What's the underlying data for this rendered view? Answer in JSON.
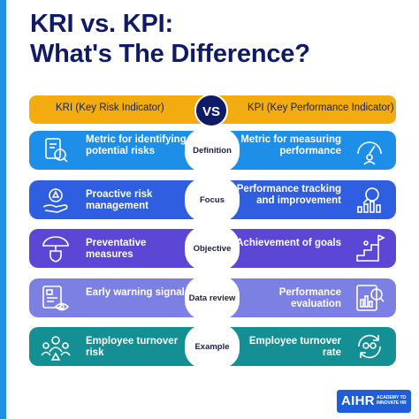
{
  "title": {
    "line1": "KRI vs. KPI:",
    "line2": "What's The Difference?"
  },
  "header": {
    "left": "KRI (Key Risk Indicator)",
    "vs": "VS",
    "right": "KPI (Key Performance Indicator)",
    "color": "#f2ac10"
  },
  "rows": [
    {
      "center": "Definition",
      "left": "Metric for identifying potential risks",
      "right": "Metric for measuring performance",
      "color": "#1e8fe8",
      "left_icon": "checklist-magnifier-icon",
      "right_icon": "gauge-person-icon"
    },
    {
      "center": "Focus",
      "left": "Proactive risk management",
      "right": "Performance tracking and improvement",
      "color": "#2f5fe0",
      "left_icon": "hand-gear-warning-icon",
      "right_icon": "magnifier-chart-icon"
    },
    {
      "center": "Objective",
      "left": "Preventative measures",
      "right": "Achievement of goals",
      "color": "#5b46d6",
      "left_icon": "umbrella-shield-icon",
      "right_icon": "stairs-flag-icon"
    },
    {
      "center": "Data review",
      "left": "Early warning signals",
      "right": "Performance evaluation",
      "color": "#7d80e3",
      "left_icon": "document-eye-icon",
      "right_icon": "chart-magnifier-icon"
    },
    {
      "center": "Example",
      "left": "Employee turnover risk",
      "right": "Employee turnover rate",
      "color": "#148f94",
      "left_icon": "people-warning-icon",
      "right_icon": "people-cycle-icon"
    }
  ],
  "logo": {
    "brand": "AIHR",
    "tagline": "ACADEMY TO INNOVATE HR"
  }
}
